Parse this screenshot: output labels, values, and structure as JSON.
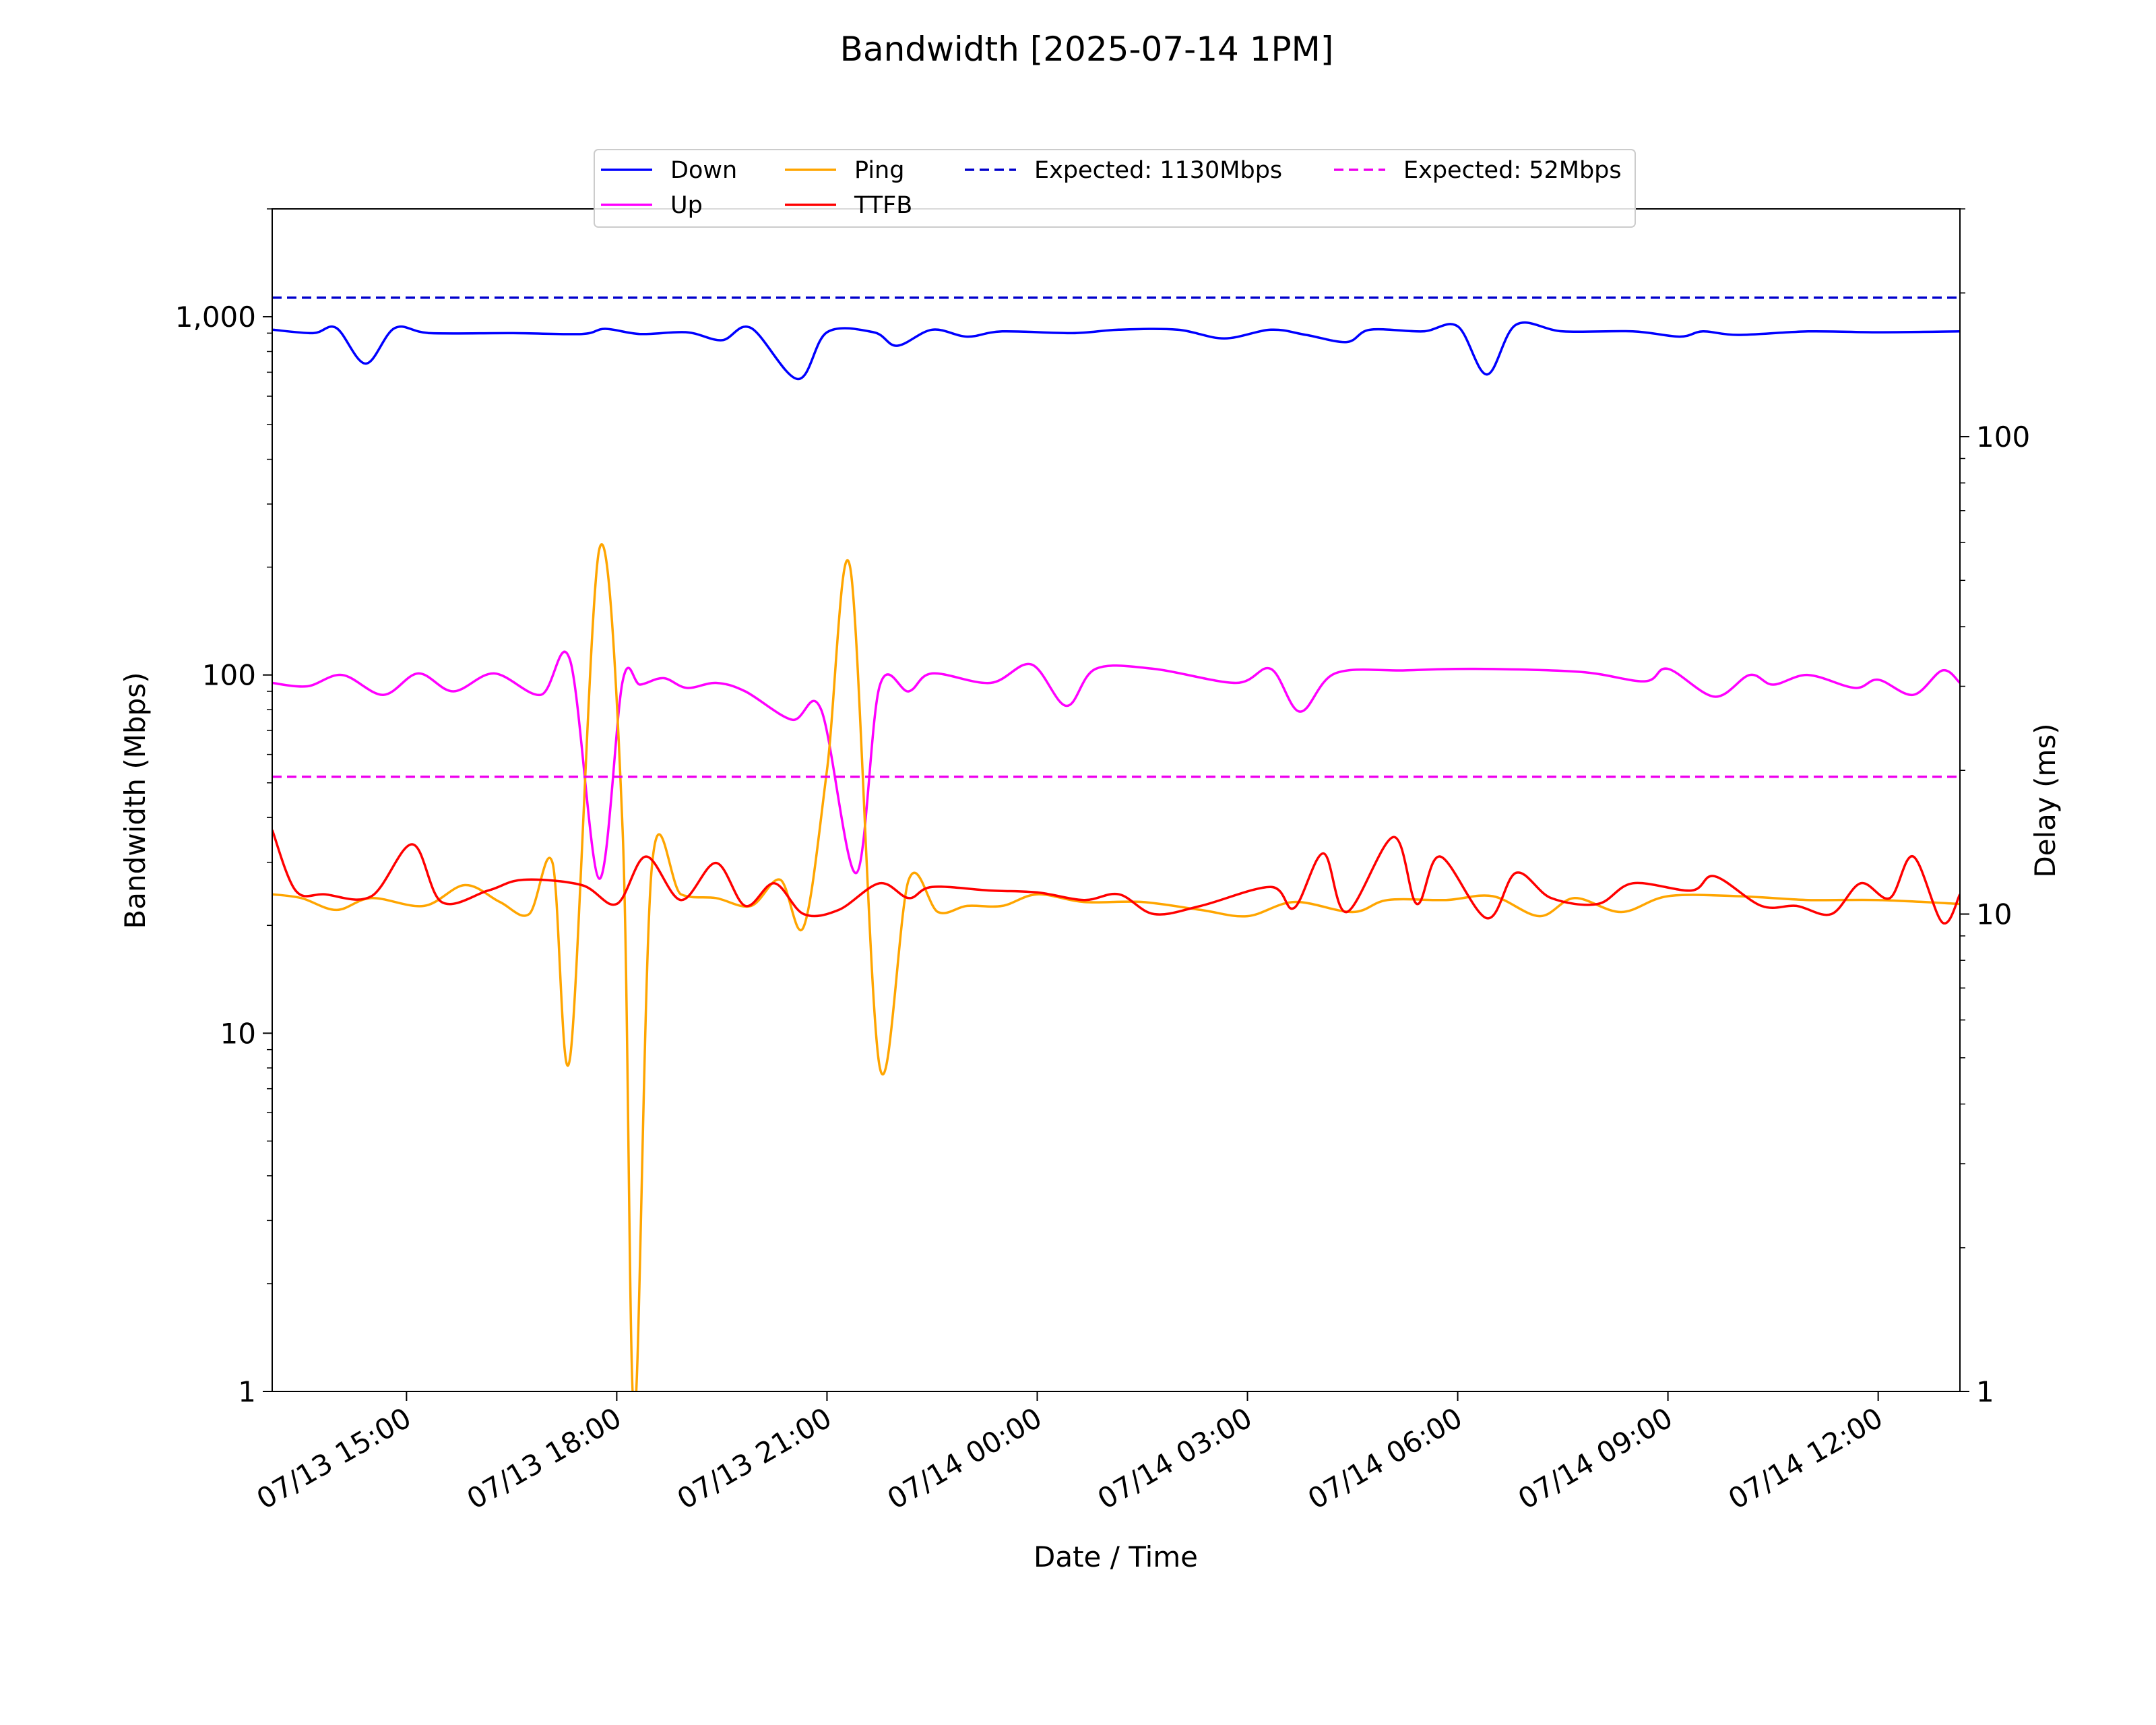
{
  "chart_data": {
    "type": "line",
    "title": "Bandwidth [2025-07-14 1PM]",
    "xlabel": "Date / Time",
    "ylabel_left": "Bandwidth (Mbps)",
    "ylabel_right": "Delay (ms)",
    "y_left_scale": "log",
    "y_right_scale": "log",
    "ylim_left": [
      1,
      2000
    ],
    "ylim_right": [
      1,
      300
    ],
    "x_start": "2025-07-13 13:05",
    "x_end": "2025-07-14 13:10",
    "x_ticks": [
      "07/13 15:00",
      "07/13 18:00",
      "07/13 21:00",
      "07/14 00:00",
      "07/14 03:00",
      "07/14 06:00",
      "07/14 09:00",
      "07/14 12:00"
    ],
    "y_left_ticks": [
      "1",
      "10",
      "100",
      "1,000"
    ],
    "y_right_ticks": [
      "1",
      "10",
      "100"
    ],
    "grid": false,
    "legend_placement": "top-center",
    "colors": {
      "down": "#0000ff",
      "up": "#ff00ff",
      "ping": "#ffa500",
      "ttfb": "#ff0000",
      "expected_down": "#0000cc",
      "expected_up": "#ee00ee"
    },
    "legend": [
      "Down",
      "Up",
      "Ping",
      "TTFB",
      "Expected: 1130Mbps",
      "Expected: 52Mbps"
    ],
    "series": [
      {
        "name": "Down",
        "axis": "left",
        "style": "solid",
        "color": "#0000ff",
        "points": [
          [
            "07/13 13:05",
            920
          ],
          [
            "07/13 13:40",
            900
          ],
          [
            "07/13 14:00",
            930
          ],
          [
            "07/13 14:25",
            740
          ],
          [
            "07/13 14:50",
            930
          ],
          [
            "07/13 15:20",
            900
          ],
          [
            "07/13 16:30",
            900
          ],
          [
            "07/13 17:30",
            895
          ],
          [
            "07/13 17:50",
            925
          ],
          [
            "07/13 18:20",
            895
          ],
          [
            "07/13 19:00",
            905
          ],
          [
            "07/13 19:30",
            860
          ],
          [
            "07/13 19:55",
            930
          ],
          [
            "07/13 20:35",
            670
          ],
          [
            "07/13 21:00",
            905
          ],
          [
            "07/13 21:40",
            905
          ],
          [
            "07/13 22:00",
            830
          ],
          [
            "07/13 22:30",
            920
          ],
          [
            "07/13 23:00",
            880
          ],
          [
            "07/13 23:30",
            910
          ],
          [
            "07/14 00:30",
            900
          ],
          [
            "07/14 01:10",
            920
          ],
          [
            "07/14 02:00",
            920
          ],
          [
            "07/14 02:40",
            870
          ],
          [
            "07/14 03:20",
            920
          ],
          [
            "07/14 03:50",
            890
          ],
          [
            "07/14 04:25",
            850
          ],
          [
            "07/14 04:45",
            920
          ],
          [
            "07/14 05:30",
            910
          ],
          [
            "07/14 06:00",
            940
          ],
          [
            "07/14 06:25",
            690
          ],
          [
            "07/14 06:50",
            950
          ],
          [
            "07/14 07:30",
            910
          ],
          [
            "07/14 08:30",
            910
          ],
          [
            "07/14 09:10",
            880
          ],
          [
            "07/14 09:30",
            910
          ],
          [
            "07/14 10:00",
            890
          ],
          [
            "07/14 11:00",
            910
          ],
          [
            "07/14 12:00",
            905
          ],
          [
            "07/14 13:10",
            910
          ]
        ]
      },
      {
        "name": "Up",
        "axis": "left",
        "style": "solid",
        "color": "#ff00ff",
        "points": [
          [
            "07/13 13:05",
            95
          ],
          [
            "07/13 13:35",
            93
          ],
          [
            "07/13 14:05",
            100
          ],
          [
            "07/13 14:40",
            88
          ],
          [
            "07/13 15:10",
            101
          ],
          [
            "07/13 15:40",
            90
          ],
          [
            "07/13 16:15",
            101
          ],
          [
            "07/13 16:55",
            88
          ],
          [
            "07/13 17:20",
            110
          ],
          [
            "07/13 17:45",
            27
          ],
          [
            "07/13 18:05",
            96
          ],
          [
            "07/13 18:20",
            94
          ],
          [
            "07/13 18:40",
            98
          ],
          [
            "07/13 19:00",
            92
          ],
          [
            "07/13 19:25",
            95
          ],
          [
            "07/13 19:50",
            90
          ],
          [
            "07/13 20:30",
            75
          ],
          [
            "07/13 20:55",
            80
          ],
          [
            "07/13 21:25",
            28
          ],
          [
            "07/13 21:45",
            93
          ],
          [
            "07/13 22:10",
            90
          ],
          [
            "07/13 22:30",
            101
          ],
          [
            "07/13 23:20",
            95
          ],
          [
            "07/13 23:55",
            107
          ],
          [
            "07/14 00:25",
            82
          ],
          [
            "07/14 00:50",
            104
          ],
          [
            "07/14 01:40",
            104
          ],
          [
            "07/14 02:50",
            95
          ],
          [
            "07/14 03:20",
            104
          ],
          [
            "07/14 03:45",
            79
          ],
          [
            "07/14 04:15",
            101
          ],
          [
            "07/14 05:15",
            103
          ],
          [
            "07/14 06:15",
            104
          ],
          [
            "07/14 07:45",
            102
          ],
          [
            "07/14 08:40",
            96
          ],
          [
            "07/14 09:00",
            104
          ],
          [
            "07/14 09:40",
            87
          ],
          [
            "07/14 10:10",
            100
          ],
          [
            "07/14 10:30",
            94
          ],
          [
            "07/14 11:00",
            100
          ],
          [
            "07/14 11:40",
            92
          ],
          [
            "07/14 12:00",
            97
          ],
          [
            "07/14 12:30",
            88
          ],
          [
            "07/14 12:55",
            103
          ],
          [
            "07/14 13:10",
            95
          ]
        ]
      },
      {
        "name": "Ping",
        "axis": "right",
        "style": "solid",
        "color": "#ffa500",
        "points": [
          [
            "07/13 13:05",
            11.0
          ],
          [
            "07/13 13:30",
            10.8
          ],
          [
            "07/13 14:00",
            10.2
          ],
          [
            "07/13 14:30",
            10.8
          ],
          [
            "07/13 15:15",
            10.4
          ],
          [
            "07/13 15:50",
            11.5
          ],
          [
            "07/13 16:20",
            10.6
          ],
          [
            "07/13 16:45",
            10.0
          ],
          [
            "07/13 17:05",
            12.8
          ],
          [
            "07/13 17:20",
            5.0
          ],
          [
            "07/13 17:45",
            58
          ],
          [
            "07/13 18:05",
            15
          ],
          [
            "07/13 18:15",
            0.9
          ],
          [
            "07/13 18:30",
            12.5
          ],
          [
            "07/13 18:55",
            11.0
          ],
          [
            "07/13 19:25",
            10.8
          ],
          [
            "07/13 19:55",
            10.4
          ],
          [
            "07/13 20:20",
            11.8
          ],
          [
            "07/13 20:40",
            9.4
          ],
          [
            "07/13 21:00",
            20
          ],
          [
            "07/13 21:20",
            53
          ],
          [
            "07/13 21:45",
            4.8
          ],
          [
            "07/13 22:10",
            11.8
          ],
          [
            "07/13 22:35",
            10.1
          ],
          [
            "07/13 23:00",
            10.4
          ],
          [
            "07/13 23:30",
            10.4
          ],
          [
            "07/14 00:00",
            11.0
          ],
          [
            "07/14 00:40",
            10.6
          ],
          [
            "07/14 01:30",
            10.6
          ],
          [
            "07/14 02:20",
            10.2
          ],
          [
            "07/14 03:00",
            9.9
          ],
          [
            "07/14 03:40",
            10.6
          ],
          [
            "07/14 04:30",
            10.1
          ],
          [
            "07/14 05:00",
            10.7
          ],
          [
            "07/14 05:50",
            10.7
          ],
          [
            "07/14 06:30",
            10.9
          ],
          [
            "07/14 07:10",
            9.9
          ],
          [
            "07/14 07:40",
            10.8
          ],
          [
            "07/14 08:20",
            10.1
          ],
          [
            "07/14 09:00",
            10.9
          ],
          [
            "07/14 10:00",
            10.9
          ],
          [
            "07/14 11:00",
            10.7
          ],
          [
            "07/14 12:00",
            10.7
          ],
          [
            "07/14 13:10",
            10.5
          ]
        ]
      },
      {
        "name": "TTFB",
        "axis": "right",
        "style": "solid",
        "color": "#ff0000",
        "points": [
          [
            "07/13 13:05",
            15.0
          ],
          [
            "07/13 13:25",
            11.2
          ],
          [
            "07/13 13:50",
            11.0
          ],
          [
            "07/13 14:30",
            10.9
          ],
          [
            "07/13 15:05",
            14.0
          ],
          [
            "07/13 15:30",
            10.6
          ],
          [
            "07/13 16:10",
            11.2
          ],
          [
            "07/13 16:40",
            11.8
          ],
          [
            "07/13 17:30",
            11.5
          ],
          [
            "07/13 18:00",
            10.5
          ],
          [
            "07/13 18:25",
            13.2
          ],
          [
            "07/13 18:55",
            10.7
          ],
          [
            "07/13 19:25",
            12.8
          ],
          [
            "07/13 19:50",
            10.4
          ],
          [
            "07/13 20:15",
            11.6
          ],
          [
            "07/13 20:40",
            10.0
          ],
          [
            "07/13 21:10",
            10.2
          ],
          [
            "07/13 21:45",
            11.6
          ],
          [
            "07/13 22:10",
            10.8
          ],
          [
            "07/13 22:30",
            11.4
          ],
          [
            "07/13 23:20",
            11.2
          ],
          [
            "07/14 00:00",
            11.1
          ],
          [
            "07/14 00:40",
            10.7
          ],
          [
            "07/14 01:10",
            11.0
          ],
          [
            "07/14 01:40",
            10.0
          ],
          [
            "07/14 02:20",
            10.4
          ],
          [
            "07/14 03:20",
            11.4
          ],
          [
            "07/14 03:40",
            10.3
          ],
          [
            "07/14 04:05",
            13.4
          ],
          [
            "07/14 04:25",
            10.1
          ],
          [
            "07/14 05:05",
            14.5
          ],
          [
            "07/14 05:25",
            10.5
          ],
          [
            "07/14 05:45",
            13.2
          ],
          [
            "07/14 06:25",
            9.8
          ],
          [
            "07/14 06:50",
            12.2
          ],
          [
            "07/14 07:20",
            10.8
          ],
          [
            "07/14 08:00",
            10.5
          ],
          [
            "07/14 08:30",
            11.6
          ],
          [
            "07/14 09:20",
            11.2
          ],
          [
            "07/14 09:40",
            12.0
          ],
          [
            "07/14 10:20",
            10.4
          ],
          [
            "07/14 10:50",
            10.4
          ],
          [
            "07/14 11:20",
            10.0
          ],
          [
            "07/14 11:45",
            11.6
          ],
          [
            "07/14 12:10",
            10.8
          ],
          [
            "07/14 12:30",
            13.2
          ],
          [
            "07/14 12:55",
            9.6
          ],
          [
            "07/14 13:10",
            11.0
          ]
        ]
      },
      {
        "name": "Expected: 1130Mbps",
        "axis": "left",
        "style": "dashed",
        "color": "#0000cc",
        "value": 1130
      },
      {
        "name": "Expected: 52Mbps",
        "axis": "left",
        "style": "dashed",
        "color": "#ee00ee",
        "value": 52
      }
    ]
  }
}
